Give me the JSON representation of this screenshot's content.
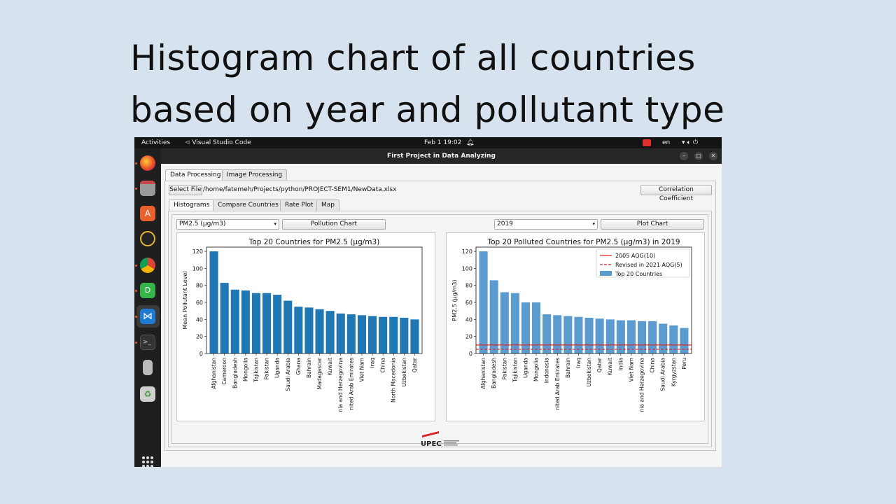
{
  "slide": {
    "title_line1": "Histogram chart of all countries",
    "title_line2": "based on year and pollutant type"
  },
  "topbar": {
    "activities": "Activities",
    "app_name": "Visual Studio Code",
    "clock": "Feb 1  19:02",
    "language": "en"
  },
  "window": {
    "title": "First Project in Data Analyzing",
    "main_tabs": [
      "Data Processing",
      "Image Processing"
    ],
    "select_file_label": "Select File",
    "file_path": "/home/fatemeh/Projects/python/PROJECT-SEM1/NewData.xlsx",
    "correlation_label": "Correlation Coefficient",
    "sub_tabs": [
      "Histograms",
      "Compare Countries",
      "Rate Plot",
      "Map"
    ],
    "pollutant_select": "PM2.5 (µg/m3)",
    "pollution_chart_label": "Pollution Chart",
    "year_select": "2019",
    "plot_chart_label": "Plot Chart",
    "logo_text": "UPEC"
  },
  "colors": {
    "bar_left": "#1f77b4",
    "bar_right": "#5b9bd0",
    "aqg_line": "#d62728"
  },
  "chart_data": [
    {
      "type": "bar",
      "title": "Top 20 Countries for PM2.5 (µg/m3)",
      "xlabel": "",
      "ylabel": "Mean Pollutant Level",
      "ylim": [
        0,
        125
      ],
      "yticks": [
        0,
        20,
        40,
        60,
        80,
        100,
        120
      ],
      "categories": [
        "Afghanistan",
        "Cameroon",
        "Bangladesh",
        "Mongolia",
        "Tajikistan",
        "Pakistan",
        "Uganda",
        "Saudi Arabia",
        "Ghana",
        "Bahrain",
        "Madagascar",
        "Kuwait",
        "nia and Herzegovina",
        "nited Arab Emirates",
        "Viet Nam",
        "Iraq",
        "China",
        "North Macedonia",
        "Uzbekistan",
        "Qatar"
      ],
      "values": [
        120,
        83,
        75,
        74,
        71,
        71,
        69,
        62,
        55,
        54,
        52,
        50,
        47,
        46,
        45,
        44,
        43,
        43,
        42,
        40
      ]
    },
    {
      "type": "bar",
      "title": "Top 20 Polluted Countries for PM2.5 (µg/m3) in 2019",
      "xlabel": "",
      "ylabel": "PM2.5 (µg/m3)",
      "ylim": [
        0,
        125
      ],
      "yticks": [
        0,
        20,
        40,
        60,
        80,
        100,
        120
      ],
      "categories": [
        "Afghanistan",
        "Bangladesh",
        "Pakistan",
        "Tajikistan",
        "Uganda",
        "Mongolia",
        "Indonesia",
        "nited Arab Emirates",
        "Bahrain",
        "Iraq",
        "Uzbekistan",
        "Qatar",
        "Kuwait",
        "India",
        "Viet Nam",
        "nia and Herzegovina",
        "China",
        "Saudi Arabia",
        "Kyrgyzstan",
        "Peru"
      ],
      "values": [
        120,
        86,
        72,
        71,
        60,
        60,
        46,
        45,
        44,
        43,
        42,
        41,
        40,
        39,
        39,
        38,
        38,
        35,
        33,
        30
      ],
      "series": [
        {
          "name": "Top 20 Countries",
          "values": [
            120,
            86,
            72,
            71,
            60,
            60,
            46,
            45,
            44,
            43,
            42,
            41,
            40,
            39,
            39,
            38,
            38,
            35,
            33,
            30
          ]
        }
      ],
      "reference_lines": [
        {
          "name": "2005 AQG(10)",
          "value": 10,
          "style": "solid"
        },
        {
          "name": "Revised in 2021 AQG(5)",
          "value": 5,
          "style": "dashed"
        }
      ],
      "legend": "top-right"
    }
  ]
}
